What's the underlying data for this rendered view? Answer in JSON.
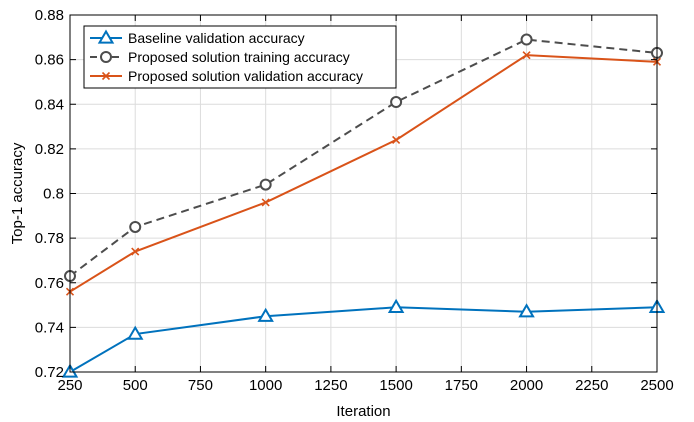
{
  "chart_data": {
    "type": "line",
    "xlabel": "Iteration",
    "ylabel": "Top-1 accuracy",
    "xlim": [
      250,
      2500
    ],
    "ylim": [
      0.72,
      0.88
    ],
    "xticks": [
      250,
      500,
      750,
      1000,
      1250,
      1500,
      1750,
      2000,
      2250,
      2500
    ],
    "xtick_labels": [
      "250",
      "500",
      "750",
      "1000",
      "1250",
      "1500",
      "1750",
      "2000",
      "2250",
      "2500"
    ],
    "yticks": [
      0.72,
      0.74,
      0.76,
      0.78,
      0.8,
      0.82,
      0.84,
      0.86,
      0.88
    ],
    "ytick_labels": [
      "0.72",
      "0.74",
      "0.76",
      "0.78",
      "0.8",
      "0.82",
      "0.84",
      "0.86",
      "0.88"
    ],
    "grid": true,
    "legend_position": "top-left",
    "x": [
      250,
      500,
      1000,
      1500,
      2000,
      2500
    ],
    "series": [
      {
        "name": "Baseline validation accuracy",
        "values": [
          0.72,
          0.737,
          0.745,
          0.749,
          0.747,
          0.749
        ],
        "color": "#0072BD",
        "marker": "triangle",
        "dash": "solid"
      },
      {
        "name": "Proposed solution training accuracy",
        "values": [
          0.763,
          0.785,
          0.804,
          0.841,
          0.869,
          0.863
        ],
        "color": "#4D4D4D",
        "marker": "circle",
        "dash": "dashed"
      },
      {
        "name": "Proposed solution validation accuracy",
        "values": [
          0.756,
          0.774,
          0.796,
          0.824,
          0.862,
          0.859
        ],
        "color": "#D95319",
        "marker": "x",
        "dash": "solid"
      }
    ]
  }
}
